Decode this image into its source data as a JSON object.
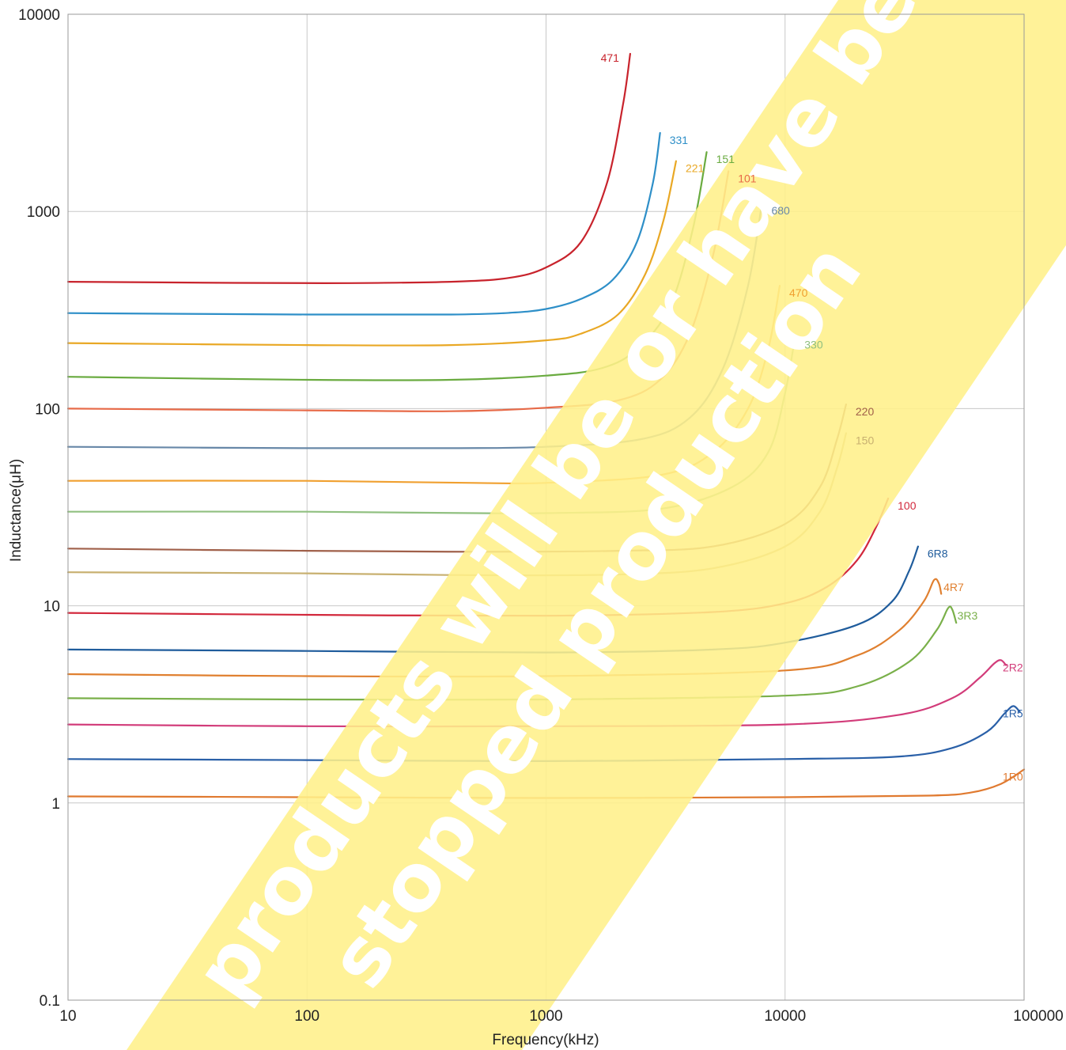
{
  "chart_data": {
    "type": "line",
    "title": "",
    "xlabel": "Frequency(kHz)",
    "ylabel": "Inductance(μH)",
    "x_scale": "log",
    "y_scale": "log",
    "xlim": [
      10,
      100000
    ],
    "ylim": [
      0.1,
      10000
    ],
    "x_ticks": [
      "10",
      "100",
      "1000",
      "10000",
      "100000"
    ],
    "y_ticks": [
      "0.1",
      "1",
      "10",
      "100",
      "1000",
      "10000"
    ],
    "grid": true,
    "legend": "inline labels at curve ends",
    "watermark": {
      "line1": "products will be or have been",
      "line2": "stopped production",
      "band_color": "#fff08a"
    },
    "series": [
      {
        "name": "471",
        "color": "#c8232c",
        "x": [
          10,
          50,
          150,
          400,
          700,
          1000,
          1400,
          1800,
          2100,
          2250
        ],
        "y": [
          440,
          434,
          433,
          440,
          460,
          520,
          700,
          1400,
          3500,
          6300
        ]
      },
      {
        "name": "331",
        "color": "#2e8fc8",
        "x": [
          10,
          100,
          400,
          700,
          1000,
          1400,
          1900,
          2400,
          2800,
          3000
        ],
        "y": [
          305,
          300,
          300,
          306,
          320,
          360,
          450,
          700,
          1400,
          2500
        ]
      },
      {
        "name": "221",
        "color": "#e9a825",
        "x": [
          10,
          100,
          400,
          1000,
          1400,
          2000,
          2600,
          3100,
          3500
        ],
        "y": [
          215,
          210,
          210,
          222,
          240,
          300,
          480,
          900,
          1800
        ]
      },
      {
        "name": "151",
        "color": "#6aab40",
        "x": [
          10,
          100,
          400,
          1000,
          1700,
          2400,
          3300,
          4100,
          4700
        ],
        "y": [
          145,
          140,
          140,
          147,
          160,
          200,
          330,
          800,
          2000
        ]
      },
      {
        "name": "101",
        "color": "#e76a48",
        "x": [
          10,
          100,
          400,
          1000,
          2000,
          3000,
          4000,
          5000,
          5800
        ],
        "y": [
          100,
          98,
          97,
          101,
          110,
          140,
          240,
          600,
          1600
        ]
      },
      {
        "name": "680",
        "color": "#6888a8",
        "x": [
          10,
          100,
          400,
          1000,
          2500,
          4000,
          5500,
          7000,
          8000
        ],
        "y": [
          64,
          63,
          63,
          64,
          70,
          90,
          160,
          420,
          1100
        ]
      },
      {
        "name": "470",
        "color": "#f0a030",
        "x": [
          10,
          100,
          500,
          1000,
          3000,
          5000,
          7000,
          8500,
          9500
        ],
        "y": [
          43,
          43,
          42,
          42,
          46,
          60,
          100,
          200,
          420
        ]
      },
      {
        "name": "330",
        "color": "#90c080",
        "x": [
          10,
          100,
          500,
          1000,
          3000,
          6000,
          8500,
          10000,
          11000
        ],
        "y": [
          30,
          30,
          29.5,
          29.5,
          31,
          40,
          60,
          120,
          230
        ]
      },
      {
        "name": "220",
        "color": "#a0604a",
        "x": [
          10,
          100,
          500,
          2000,
          5000,
          10000,
          14000,
          16500,
          18000
        ],
        "y": [
          19.5,
          19,
          18.8,
          19,
          20,
          26,
          40,
          70,
          105
        ]
      },
      {
        "name": "150",
        "color": "#c8b070",
        "x": [
          10,
          100,
          500,
          2000,
          5000,
          10000,
          14000,
          16500,
          18000
        ],
        "y": [
          14.8,
          14.6,
          14.3,
          14.4,
          15.5,
          20,
          30,
          50,
          75
        ]
      },
      {
        "name": "100",
        "color": "#d2283c",
        "x": [
          10,
          100,
          1000,
          5000,
          10000,
          15000,
          20000,
          24000,
          27000
        ],
        "y": [
          9.2,
          9.0,
          8.9,
          9.3,
          10.3,
          12.5,
          17,
          25,
          35
        ]
      },
      {
        "name": "6R8",
        "color": "#1f5c9c",
        "x": [
          10,
          100,
          1000,
          5000,
          10000,
          20000,
          28000,
          33000,
          36000
        ],
        "y": [
          6.0,
          5.9,
          5.8,
          6.0,
          6.5,
          8.0,
          10.5,
          15,
          20
        ]
      },
      {
        "name": "4R7",
        "color": "#e08030",
        "x": [
          10,
          100,
          1000,
          10000,
          20000,
          30000,
          38000,
          42000,
          44000,
          45000
        ],
        "y": [
          4.5,
          4.4,
          4.4,
          4.7,
          5.6,
          7.5,
          10.5,
          13.5,
          13,
          11.5
        ]
      },
      {
        "name": "3R3",
        "color": "#7ab04a",
        "x": [
          10,
          100,
          1000,
          10000,
          20000,
          33000,
          43000,
          48000,
          50000,
          52000
        ],
        "y": [
          3.4,
          3.35,
          3.35,
          3.5,
          3.9,
          5.2,
          7.5,
          9.7,
          9.6,
          8.2
        ]
      },
      {
        "name": "2R2",
        "color": "#d23c7a",
        "x": [
          10,
          100,
          1000,
          10000,
          30000,
          50000,
          65000,
          75000,
          80000,
          84000
        ],
        "y": [
          2.5,
          2.45,
          2.45,
          2.5,
          2.8,
          3.4,
          4.3,
          5.1,
          5.3,
          5.0
        ]
      },
      {
        "name": "1R5",
        "color": "#2a60a8",
        "x": [
          10,
          100,
          1000,
          10000,
          30000,
          50000,
          70000,
          83000,
          90000,
          96000
        ],
        "y": [
          1.67,
          1.65,
          1.63,
          1.67,
          1.72,
          1.9,
          2.3,
          2.85,
          3.1,
          2.9
        ]
      },
      {
        "name": "1R0",
        "color": "#e07a30",
        "x": [
          10,
          100,
          1000,
          10000,
          40000,
          60000,
          80000,
          100000
        ],
        "y": [
          1.08,
          1.07,
          1.06,
          1.07,
          1.09,
          1.13,
          1.25,
          1.48
        ]
      }
    ]
  }
}
